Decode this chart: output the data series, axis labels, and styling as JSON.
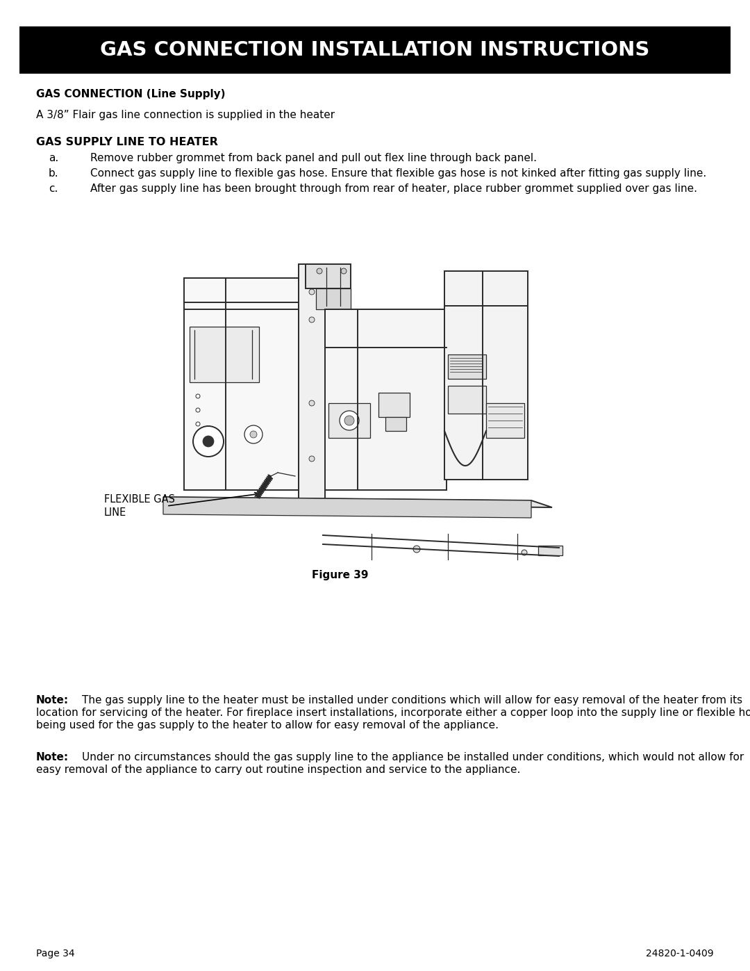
{
  "title": "GAS CONNECTION INSTALLATION INSTRUCTIONS",
  "title_bg": "#000000",
  "title_color": "#ffffff",
  "section1_heading": "GAS CONNECTION (Line Supply)",
  "section1_body": "A 3/8” Flair gas line connection is supplied in the heater",
  "section2_heading": "GAS SUPPLY LINE TO HEATER",
  "items": [
    [
      "a.",
      "Remove rubber grommet from back panel and pull out flex line through back panel."
    ],
    [
      "b.",
      "Connect gas supply line to flexible gas hose. Ensure that flexible gas hose is not kinked after fitting gas supply line."
    ],
    [
      "c.",
      "After gas supply line has been brought through from rear of heater, place rubber grommet supplied over gas line."
    ]
  ],
  "figure_label": "Figure 39",
  "flexible_gas_label": "FLEXIBLE GAS\nLINE",
  "note1_bold": "Note:",
  "note1_line1": "The gas supply line to the heater must be installed under conditions which will allow for easy removal of the heater from its",
  "note1_line2": "location for servicing of the heater. For fireplace insert installations, incorporate either a copper loop into the supply line or flexible hose",
  "note1_line3": "being used for the gas supply to the heater to allow for easy removal of the appliance.",
  "note2_bold": "Note:",
  "note2_line1": "Under no circumstances should the gas supply line to the appliance be installed under conditions, which would not allow for",
  "note2_line2": "easy removal of the appliance to carry out routine inspection and service to the appliance.",
  "footer_left": "Page 34",
  "footer_right": "24820-1-0409",
  "bg_color": "#ffffff",
  "text_color": "#000000"
}
